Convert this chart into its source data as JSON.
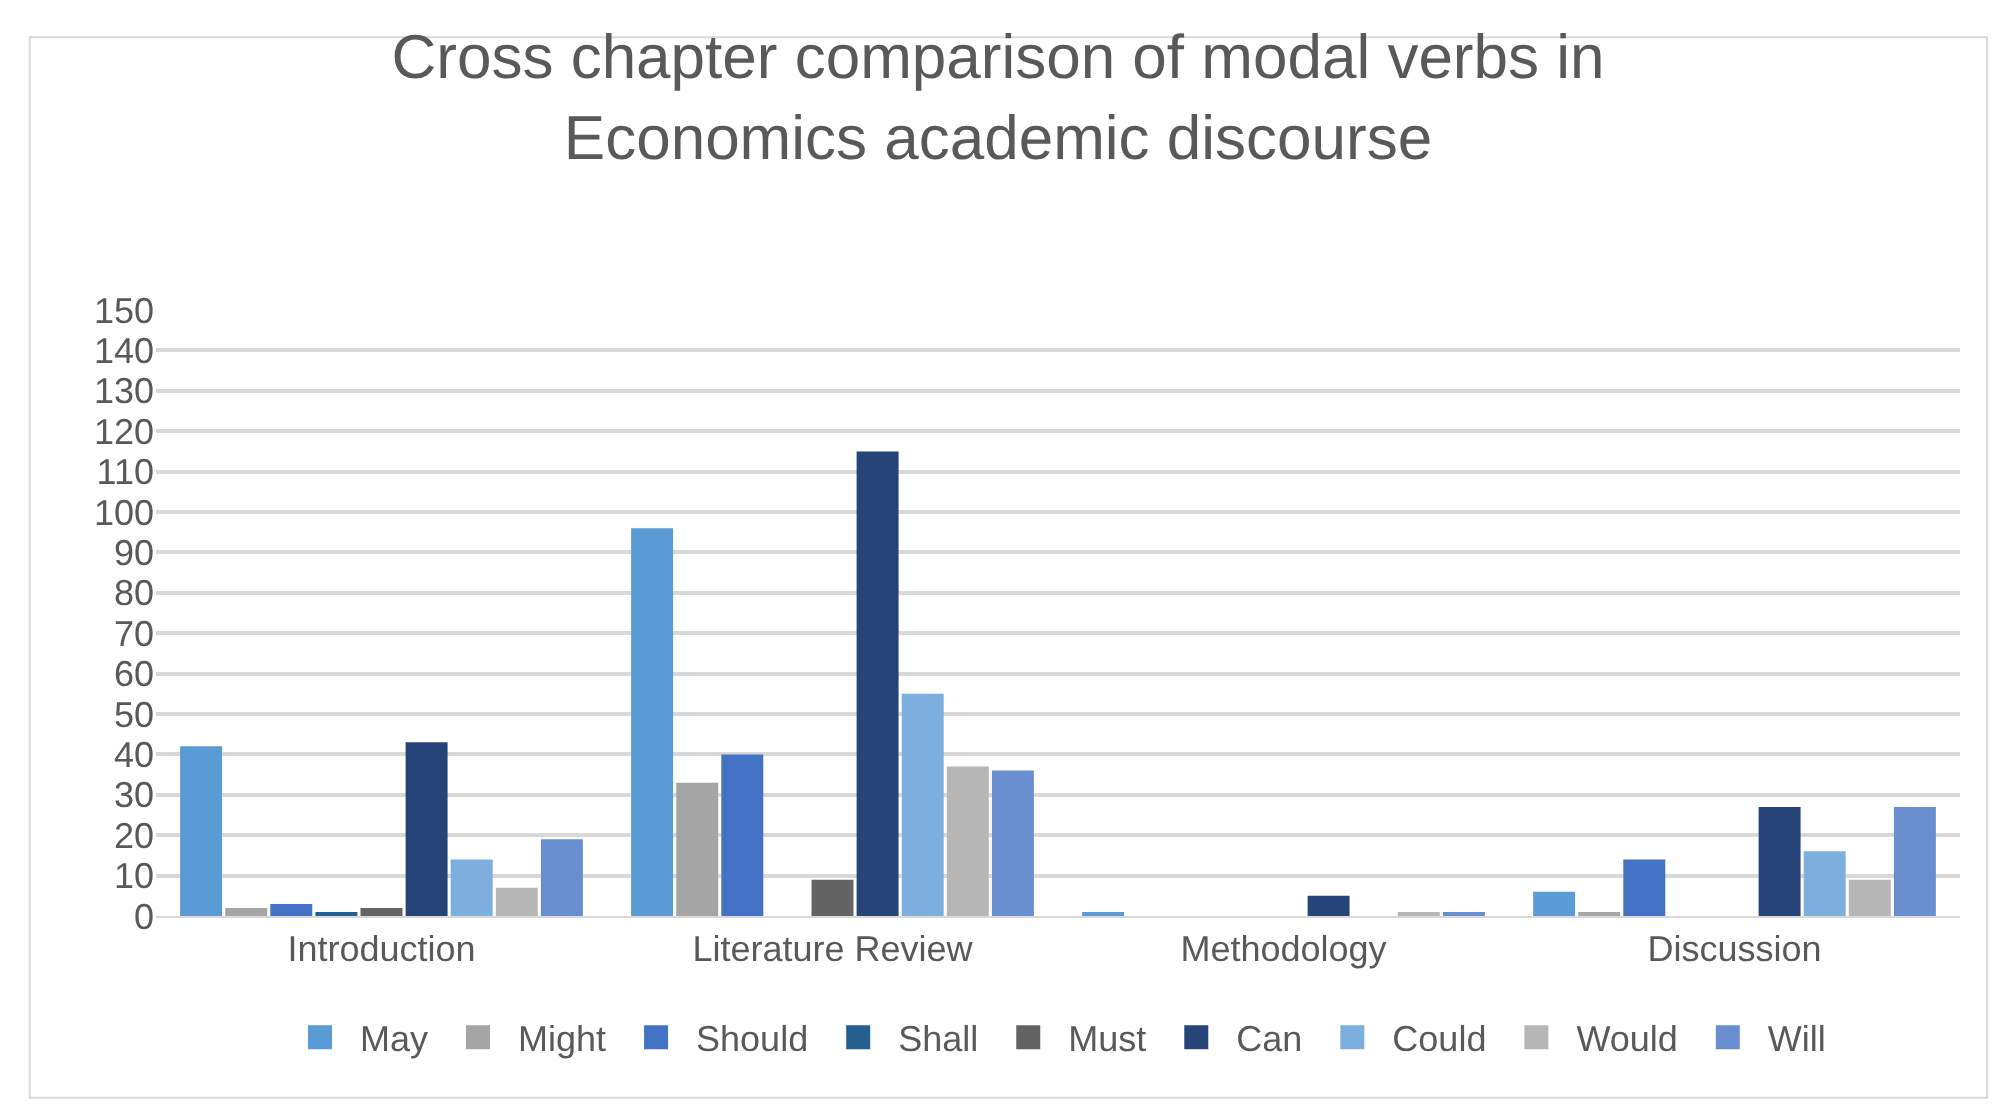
{
  "chart_data": {
    "type": "bar",
    "title": "Cross chapter comparison of modal verbs in Economics academic discourse",
    "categories": [
      "Introduction",
      "Literature Review",
      "Methodology",
      "Discussion"
    ],
    "series": [
      {
        "name": "May",
        "color": "#5b9bd5",
        "values": [
          42,
          96,
          1,
          6
        ]
      },
      {
        "name": "Might",
        "color": "#a5a5a5",
        "values": [
          2,
          33,
          0,
          1
        ]
      },
      {
        "name": "Should",
        "color": "#4472c4",
        "values": [
          3,
          40,
          0,
          14
        ]
      },
      {
        "name": "Shall",
        "color": "#255e91",
        "values": [
          1,
          0,
          0,
          0
        ]
      },
      {
        "name": "Must",
        "color": "#636363",
        "values": [
          2,
          9,
          0,
          0
        ]
      },
      {
        "name": "Can",
        "color": "#264478",
        "values": [
          43,
          115,
          5,
          27
        ]
      },
      {
        "name": "Could",
        "color": "#7cafdd",
        "values": [
          14,
          55,
          0,
          16
        ]
      },
      {
        "name": "Would",
        "color": "#b7b7b7",
        "values": [
          7,
          37,
          1,
          9
        ]
      },
      {
        "name": "Will",
        "color": "#698ed0",
        "values": [
          19,
          36,
          1,
          27
        ]
      }
    ],
    "ylim": [
      0,
      150
    ],
    "yticks": [
      0,
      10,
      20,
      30,
      40,
      50,
      60,
      70,
      80,
      90,
      100,
      110,
      120,
      130,
      140,
      150
    ],
    "grid": "y",
    "legend": "bottom"
  }
}
